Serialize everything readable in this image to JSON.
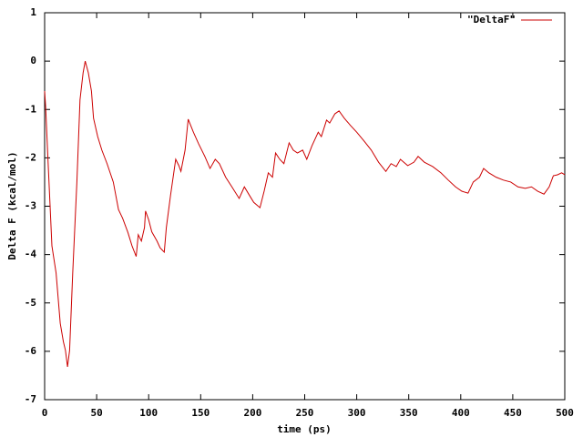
{
  "chart_data": {
    "type": "line",
    "xlabel": "time (ps)",
    "ylabel": "Delta F (kcal/mol)",
    "xlim": [
      0,
      500
    ],
    "xticks": [
      0,
      50,
      100,
      150,
      200,
      250,
      300,
      350,
      400,
      450,
      500
    ],
    "ylim": [
      -7,
      1
    ],
    "yticks": [
      -7,
      -6,
      -5,
      -4,
      -3,
      -2,
      -1,
      0,
      1
    ],
    "grid": false,
    "legend": "top-right",
    "x": [
      0,
      1,
      3,
      7,
      11,
      15,
      18,
      20,
      22,
      24,
      27,
      31,
      34,
      37,
      39,
      42,
      45,
      47,
      51,
      55,
      60,
      66,
      71,
      75,
      80,
      84,
      88,
      90,
      93,
      96,
      97,
      100,
      103,
      108,
      111,
      115,
      117,
      121,
      126,
      129,
      131,
      135,
      138,
      143,
      148,
      154,
      159,
      164,
      168,
      174,
      180,
      187,
      192,
      197,
      201,
      207,
      211,
      215,
      219,
      222,
      226,
      230,
      235,
      239,
      243,
      248,
      252,
      257,
      263,
      266,
      271,
      274,
      279,
      283,
      288,
      294,
      300,
      307,
      314,
      321,
      328,
      333,
      338,
      342,
      349,
      355,
      359,
      365,
      373,
      381,
      388,
      395,
      401,
      407,
      412,
      418,
      422,
      427,
      434,
      441,
      448,
      455,
      462,
      468,
      474,
      480,
      485,
      489,
      493,
      497,
      500
    ],
    "series": [
      {
        "name": "\"DeltaF\"",
        "color": "#cc0000",
        "values": [
          -0.62,
          -0.96,
          -1.94,
          -3.82,
          -4.38,
          -5.42,
          -5.8,
          -5.98,
          -6.32,
          -5.98,
          -4.38,
          -2.5,
          -0.8,
          -0.24,
          0.0,
          -0.24,
          -0.62,
          -1.18,
          -1.56,
          -1.84,
          -2.12,
          -2.5,
          -3.07,
          -3.25,
          -3.54,
          -3.82,
          -4.04,
          -3.59,
          -3.72,
          -3.44,
          -3.1,
          -3.28,
          -3.53,
          -3.72,
          -3.86,
          -3.95,
          -3.44,
          -2.78,
          -2.03,
          -2.16,
          -2.28,
          -1.84,
          -1.2,
          -1.47,
          -1.71,
          -1.97,
          -2.22,
          -2.03,
          -2.12,
          -2.4,
          -2.6,
          -2.84,
          -2.6,
          -2.78,
          -2.92,
          -3.03,
          -2.69,
          -2.31,
          -2.4,
          -1.9,
          -2.03,
          -2.12,
          -1.69,
          -1.84,
          -1.9,
          -1.84,
          -2.03,
          -1.75,
          -1.47,
          -1.56,
          -1.22,
          -1.28,
          -1.09,
          -1.03,
          -1.18,
          -1.33,
          -1.47,
          -1.65,
          -1.84,
          -2.09,
          -2.28,
          -2.12,
          -2.18,
          -2.03,
          -2.16,
          -2.09,
          -1.97,
          -2.09,
          -2.18,
          -2.31,
          -2.46,
          -2.6,
          -2.69,
          -2.73,
          -2.5,
          -2.4,
          -2.22,
          -2.31,
          -2.4,
          -2.46,
          -2.5,
          -2.6,
          -2.63,
          -2.6,
          -2.69,
          -2.75,
          -2.6,
          -2.37,
          -2.35,
          -2.31,
          -2.35
        ]
      }
    ]
  }
}
